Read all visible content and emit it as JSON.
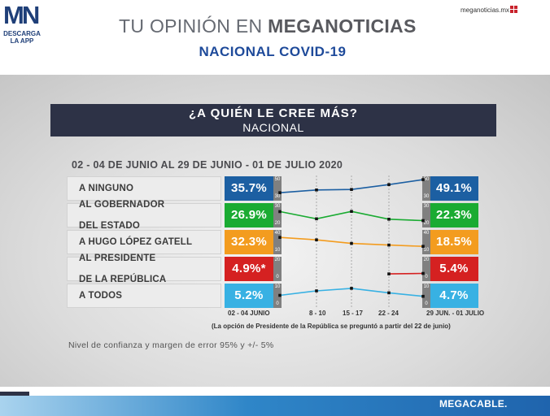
{
  "header": {
    "logo_text": "MN",
    "logo_download": "DESCARGA",
    "logo_app": "LA APP",
    "title_light": "TU OPINIÓN EN ",
    "title_bold": "MEGANOTICIAS",
    "subtitle": "NACIONAL COVID-19",
    "site": "meganoticias.mx"
  },
  "question": {
    "title": "¿A QUIÉN LE CREE MÁS?",
    "subtitle": "NACIONAL"
  },
  "colors": {
    "blue": "#1c5fa2",
    "green": "#1aab32",
    "orange": "#f39c1f",
    "red": "#d52121",
    "light_blue": "#38b1e3",
    "panel_dark": "#2d3246"
  },
  "chart_data": {
    "type": "line",
    "title": "¿A QUIÉN LE CREE MÁS?",
    "subtitle": "NACIONAL",
    "period": "02 - 04 DE JUNIO AL 29 DE JUNIO - 01 DE JULIO 2020",
    "x": [
      "02 - 04 JUNIO",
      "8 - 10",
      "15 - 17",
      "22 - 24",
      "29 JUN. - 01 JULIO"
    ],
    "series": [
      {
        "name": "A NINGUNO",
        "name_lines": [
          "A NINGUNO"
        ],
        "first_label": "35.7%",
        "last_label": "49.1%",
        "values": [
          35.7,
          38.5,
          39.0,
          44.0,
          49.1
        ],
        "scale_min": 30,
        "scale_max": 50,
        "color": "#1c5fa2"
      },
      {
        "name": "AL GOBERNADOR DEL ESTADO",
        "name_lines": [
          "AL GOBERNADOR",
          "DEL ESTADO"
        ],
        "first_label": "26.9%",
        "last_label": "22.3%",
        "values": [
          26.9,
          23.2,
          27.0,
          23.0,
          22.3
        ],
        "scale_min": 20,
        "scale_max": 30,
        "color": "#1aab32"
      },
      {
        "name": "A HUGO LÓPEZ GATELL",
        "name_lines": [
          "A HUGO LÓPEZ GATELL"
        ],
        "first_label": "32.3%",
        "last_label": "18.5%",
        "values": [
          32.3,
          28.5,
          23.0,
          20.5,
          18.5
        ],
        "scale_min": 10,
        "scale_max": 40,
        "color": "#f39c1f"
      },
      {
        "name": "AL PRESIDENTE DE LA REPÚBLICA",
        "name_lines": [
          "AL PRESIDENTE",
          "DE LA REPÚBLICA"
        ],
        "first_label": "4.9%*",
        "last_label": "5.4%",
        "values": [
          null,
          null,
          null,
          4.9,
          5.4
        ],
        "scale_min": 0,
        "scale_max": 20,
        "color": "#d52121"
      },
      {
        "name": "A TODOS",
        "name_lines": [
          "A TODOS"
        ],
        "first_label": "5.2%",
        "last_label": "4.7%",
        "values": [
          5.2,
          7.5,
          8.8,
          6.5,
          4.7
        ],
        "scale_min": 0,
        "scale_max": 10,
        "color": "#38b1e3"
      }
    ],
    "note": "(La opción de Presidente de la República se preguntó a partir del 22 de junio)",
    "margin_note": "Nivel de confianza y margen de error 95% y +/- 5%"
  },
  "footer": {
    "brand": "MEGACABLE."
  }
}
